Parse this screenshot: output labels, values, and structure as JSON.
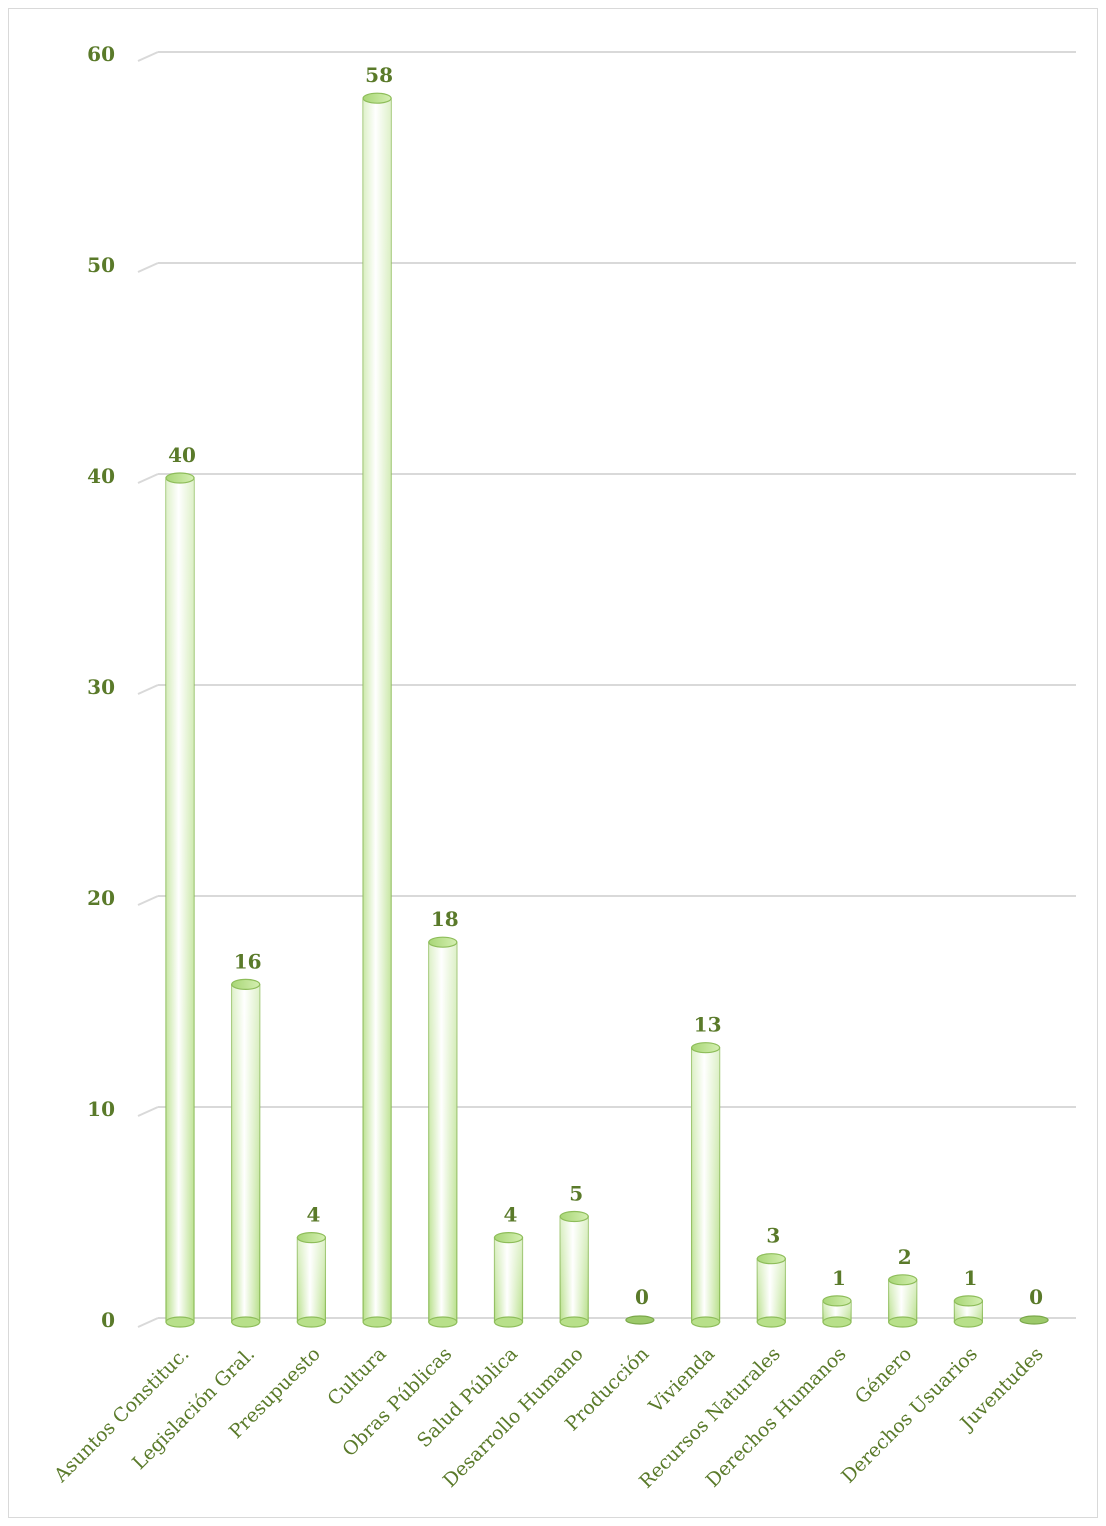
{
  "chart_data": {
    "type": "bar",
    "categories": [
      "Asuntos Constituc.",
      "Legislación Gral.",
      "Presupuesto",
      "Cultura",
      "Obras Públicas",
      "Salud Pública",
      "Desarrollo Humano",
      "Producción",
      "Vivienda",
      "Recursos Naturales",
      "Derechos Humanos",
      "Género",
      "Derechos Usuarios",
      "Juventudes"
    ],
    "values": [
      40,
      16,
      4,
      58,
      18,
      4,
      5,
      0,
      13,
      3,
      1,
      2,
      1,
      0
    ],
    "ylim": [
      0,
      60
    ],
    "yticks": [
      "0",
      "10",
      "20",
      "30",
      "40",
      "50",
      "60"
    ],
    "grid": true,
    "bar_style": "3d-cylinder",
    "colors": {
      "bar_light": "#ffffff",
      "bar_dark": "#b8e08a",
      "bar_edge": "#8ebd5a",
      "text": "#5a7a2a",
      "grid": "#d9d9d9"
    }
  }
}
